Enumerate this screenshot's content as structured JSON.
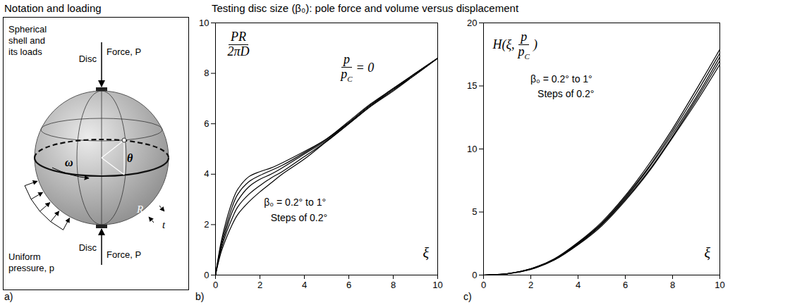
{
  "header": {
    "left": "Notation and loading",
    "right": "Testing disc size (β₀): pole force and volume versus displacement"
  },
  "diagram": {
    "panel_label": "a)",
    "labels": {
      "disc_top": "Disc",
      "force_top": "Force, P",
      "disc_bottom": "Disc",
      "force_bottom": "Force, P",
      "shell": "Spherical shell and its loads",
      "pressure": "Uniform pressure, p",
      "theta": "θ",
      "omega": "ω",
      "radius": "R",
      "thickness": "t"
    }
  },
  "chart_data": [
    {
      "type": "line",
      "panel_label": "b)",
      "ylabel": {
        "numerator": "PR",
        "denominator": "2πD"
      },
      "xlabel": "ξ",
      "condition": {
        "numerator": "p",
        "denominator": "p",
        "denominator_subscript": "C",
        "suffix": " = 0"
      },
      "annotations": [
        "β₀ = 0.2° to 1°",
        "Steps of 0.2°"
      ],
      "xlim": [
        0,
        10
      ],
      "xticks": [
        0,
        2,
        4,
        6,
        8,
        10
      ],
      "ylim": [
        0,
        10
      ],
      "yticks": [
        0,
        2,
        4,
        6,
        8,
        10
      ],
      "grid": false,
      "x": [
        0,
        0.25,
        0.5,
        0.75,
        1,
        1.5,
        2,
        2.5,
        3,
        4,
        5,
        6,
        7,
        8,
        9,
        10
      ],
      "series": [
        {
          "color": "#000000",
          "values": [
            0,
            1.3,
            2.2,
            2.9,
            3.4,
            3.9,
            4.1,
            4.25,
            4.45,
            4.9,
            5.4,
            6.1,
            6.8,
            7.4,
            8.0,
            8.6
          ]
        },
        {
          "color": "#000000",
          "values": [
            0,
            1.2,
            2.0,
            2.7,
            3.2,
            3.7,
            3.95,
            4.15,
            4.35,
            4.85,
            5.4,
            6.05,
            6.75,
            7.4,
            8.0,
            8.6
          ]
        },
        {
          "color": "#000000",
          "values": [
            0,
            1.1,
            1.85,
            2.5,
            2.95,
            3.5,
            3.8,
            4.0,
            4.25,
            4.8,
            5.35,
            6.05,
            6.75,
            7.35,
            8.0,
            8.6
          ]
        },
        {
          "color": "#000000",
          "values": [
            0,
            1.0,
            1.7,
            2.25,
            2.7,
            3.2,
            3.55,
            3.85,
            4.1,
            4.7,
            5.3,
            6.0,
            6.7,
            7.35,
            7.95,
            8.6
          ]
        },
        {
          "color": "#000000",
          "values": [
            0,
            0.9,
            1.5,
            2.0,
            2.4,
            2.9,
            3.3,
            3.65,
            4.0,
            4.6,
            5.3,
            6.0,
            6.7,
            7.3,
            7.95,
            8.6
          ]
        }
      ]
    },
    {
      "type": "line",
      "panel_label": "c)",
      "ylabel": {
        "prefix": "H(ξ, ",
        "numerator": "p",
        "denominator": "p",
        "denominator_subscript": "C",
        "suffix": ")"
      },
      "xlabel": "ξ",
      "annotations": [
        "β₀ = 0.2° to 1°",
        "Steps of 0.2°"
      ],
      "xlim": [
        0,
        10
      ],
      "xticks": [
        0,
        2,
        4,
        6,
        8,
        10
      ],
      "ylim": [
        0,
        20
      ],
      "yticks": [
        0,
        5,
        10,
        15,
        20
      ],
      "grid": false,
      "x": [
        0,
        1,
        2,
        3,
        4,
        5,
        6,
        7,
        8,
        9,
        10
      ],
      "series": [
        {
          "color": "#000000",
          "values": [
            0,
            0.1,
            0.5,
            1.3,
            2.6,
            4.2,
            6.3,
            8.8,
            11.6,
            14.7,
            17.9
          ]
        },
        {
          "color": "#000000",
          "values": [
            0,
            0.1,
            0.5,
            1.25,
            2.55,
            4.1,
            6.2,
            8.6,
            11.4,
            14.4,
            17.6
          ]
        },
        {
          "color": "#000000",
          "values": [
            0,
            0.1,
            0.5,
            1.25,
            2.5,
            4.05,
            6.1,
            8.5,
            11.2,
            14.1,
            17.3
          ]
        },
        {
          "color": "#000000",
          "values": [
            0,
            0.1,
            0.45,
            1.2,
            2.45,
            4.0,
            6.0,
            8.3,
            11.0,
            13.9,
            17.0
          ]
        },
        {
          "color": "#000000",
          "values": [
            0,
            0.1,
            0.45,
            1.2,
            2.4,
            3.9,
            5.9,
            8.2,
            10.9,
            13.7,
            16.7
          ]
        }
      ]
    }
  ]
}
